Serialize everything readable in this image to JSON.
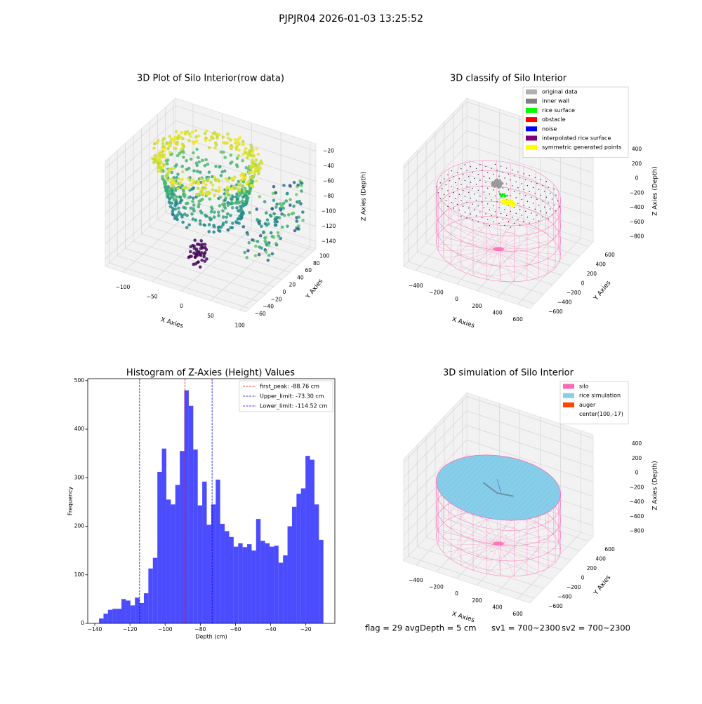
{
  "title": "PJPJR04 2026-01-03 13:25:52",
  "chart_data": [
    {
      "type": "scatter3d",
      "title": "3D Plot of Silo Interior(row data)",
      "xlabel": "X Axies",
      "ylabel": "Y Axies",
      "zlabel": "Z Axies (Depth)",
      "xlim": [
        -130,
        110
      ],
      "ylim": [
        -70,
        105
      ],
      "zlim": [
        -150,
        -10
      ],
      "xticks": [
        {
          "value": -100,
          "label": "−100"
        },
        {
          "value": -50,
          "label": "−50"
        },
        0,
        50,
        100
      ],
      "yticks": [
        {
          "value": -60,
          "label": "−60"
        },
        {
          "value": -40,
          "label": "−40"
        },
        {
          "value": -20,
          "label": "−20"
        },
        0,
        20,
        40,
        60,
        80,
        100
      ],
      "zticks": [
        {
          "value": -140,
          "label": "−140"
        },
        {
          "value": -120,
          "label": "−120"
        },
        {
          "value": -100,
          "label": "−100"
        },
        {
          "value": -80,
          "label": "−80"
        },
        {
          "value": -60,
          "label": "−60"
        },
        {
          "value": -40,
          "label": "−40"
        },
        {
          "value": -20,
          "label": "−20"
        }
      ]
    },
    {
      "type": "classify3d",
      "title": "3D classify of Silo Interior",
      "xlabel": "X Axies",
      "ylabel": "Y Axies",
      "zlabel": "Z Axies (Depth)",
      "xlim": [
        -520,
        720
      ],
      "ylim": [
        -700,
        700
      ],
      "zlim": [
        -950,
        450
      ],
      "xticks": [
        {
          "value": -400,
          "label": "−400"
        },
        {
          "value": -200,
          "label": "−200"
        },
        0,
        200,
        400,
        600
      ],
      "yticks": [
        {
          "value": -600,
          "label": "−600"
        },
        {
          "value": -400,
          "label": "−400"
        },
        {
          "value": -200,
          "label": "−200"
        },
        0,
        200,
        400,
        600
      ],
      "zticks": [
        {
          "value": -800,
          "label": "−800"
        },
        {
          "value": -600,
          "label": "−600"
        },
        {
          "value": -400,
          "label": "−400"
        },
        {
          "value": -200,
          "label": "−200"
        },
        0,
        200,
        400
      ],
      "legend": [
        {
          "name": "original data",
          "color": "#b0b0b0"
        },
        {
          "name": "inner wall",
          "color": "#808080"
        },
        {
          "name": "rice surface",
          "color": "#00ff00"
        },
        {
          "name": "obstacle",
          "color": "#ff0000"
        },
        {
          "name": "noise",
          "color": "#0000ff"
        },
        {
          "name": "interpolated rice surface",
          "color": "#800080"
        },
        {
          "name": "symmetric generated points",
          "color": "#ffff00"
        }
      ]
    },
    {
      "type": "histogram",
      "title": "Histogram of Z-Axies (Height) Values",
      "xlabel": "Depth (cm)",
      "ylabel": "Frequency",
      "color": "#0000ff",
      "alpha": 0.7,
      "bins": [
        -137.6,
        -135.05,
        -132.5,
        -129.94,
        -127.39,
        -124.84,
        -122.29,
        -119.74,
        -117.18,
        -114.63,
        -112.08,
        -109.53,
        -106.98,
        -104.42,
        -101.87,
        -99.32,
        -96.77,
        -94.22,
        -91.66,
        -89.11,
        -86.56,
        -84.01,
        -81.46,
        -78.9,
        -76.35,
        -73.8,
        -71.25,
        -68.7,
        -66.14,
        -63.59,
        -61.04,
        -58.49,
        -55.94,
        -53.38,
        -50.83,
        -48.28,
        -45.73,
        -43.18,
        -40.62,
        -38.07,
        -35.52,
        -32.97,
        -30.42,
        -27.86,
        -25.31,
        -22.76,
        -20.21,
        -17.66,
        -15.1,
        -12.55,
        -10.0
      ],
      "values": [
        10,
        20,
        28,
        30,
        30,
        50,
        47,
        37,
        53,
        42,
        62,
        113,
        135,
        312,
        360,
        255,
        245,
        285,
        355,
        480,
        448,
        358,
        243,
        292,
        203,
        245,
        296,
        205,
        190,
        178,
        158,
        165,
        157,
        163,
        150,
        215,
        170,
        165,
        158,
        160,
        125,
        140,
        200,
        240,
        267,
        278,
        345,
        337,
        245,
        172
      ],
      "xlim": [
        -144,
        -3.5
      ],
      "ylim": [
        0,
        504
      ],
      "xticks": [
        {
          "value": -140,
          "label": "−140"
        },
        {
          "value": -120,
          "label": "−120"
        },
        {
          "value": -100,
          "label": "−100"
        },
        {
          "value": -80,
          "label": "−80"
        },
        {
          "value": -60,
          "label": "−60"
        },
        {
          "value": -40,
          "label": "−40"
        },
        {
          "value": -20,
          "label": "−20"
        }
      ],
      "yticks": [
        0,
        100,
        200,
        300,
        400,
        500
      ],
      "legend_position": "upper right",
      "lines": [
        {
          "label": "first_peak: -88.76 cm",
          "value": -88.76,
          "color": "#ff0000"
        },
        {
          "label": "Upper_limit: -73.30 cm",
          "value": -73.3,
          "color": "#0000ff"
        },
        {
          "label": "Lower_limit: -114.52 cm",
          "value": -114.52,
          "color": "#0000ff"
        }
      ]
    },
    {
      "type": "simulation3d",
      "title": "3D simulation of Silo Interior",
      "xlabel": "X Axies",
      "ylabel": "Y Axies",
      "zlabel": "Z Axies (Depth)",
      "xlim": [
        -520,
        720
      ],
      "ylim": [
        -700,
        700
      ],
      "zlim": [
        -950,
        450
      ],
      "xticks": [
        {
          "value": -400,
          "label": "−400"
        },
        {
          "value": -200,
          "label": "−200"
        },
        0,
        200,
        400,
        600
      ],
      "yticks": [
        {
          "value": -600,
          "label": "−600"
        },
        {
          "value": -400,
          "label": "−400"
        },
        {
          "value": -200,
          "label": "−200"
        },
        0,
        200,
        400,
        600
      ],
      "zticks": [
        {
          "value": -800,
          "label": "−800"
        },
        {
          "value": -600,
          "label": "−600"
        },
        {
          "value": -400,
          "label": "−400"
        },
        {
          "value": -200,
          "label": "−200"
        },
        0,
        200,
        400
      ],
      "legend": [
        {
          "name": "silo",
          "color": "#ff69b4"
        },
        {
          "name": "rice simulation",
          "color": "#87ceeb"
        },
        {
          "name": "auger",
          "color": "#ff4500"
        },
        {
          "name": "center(100,-17)",
          "color": null
        }
      ]
    }
  ],
  "footer": [
    "flag = 29  avgDepth = 5 cm",
    "sv1 = 700~2300",
    "sv2 = 700~2300"
  ]
}
